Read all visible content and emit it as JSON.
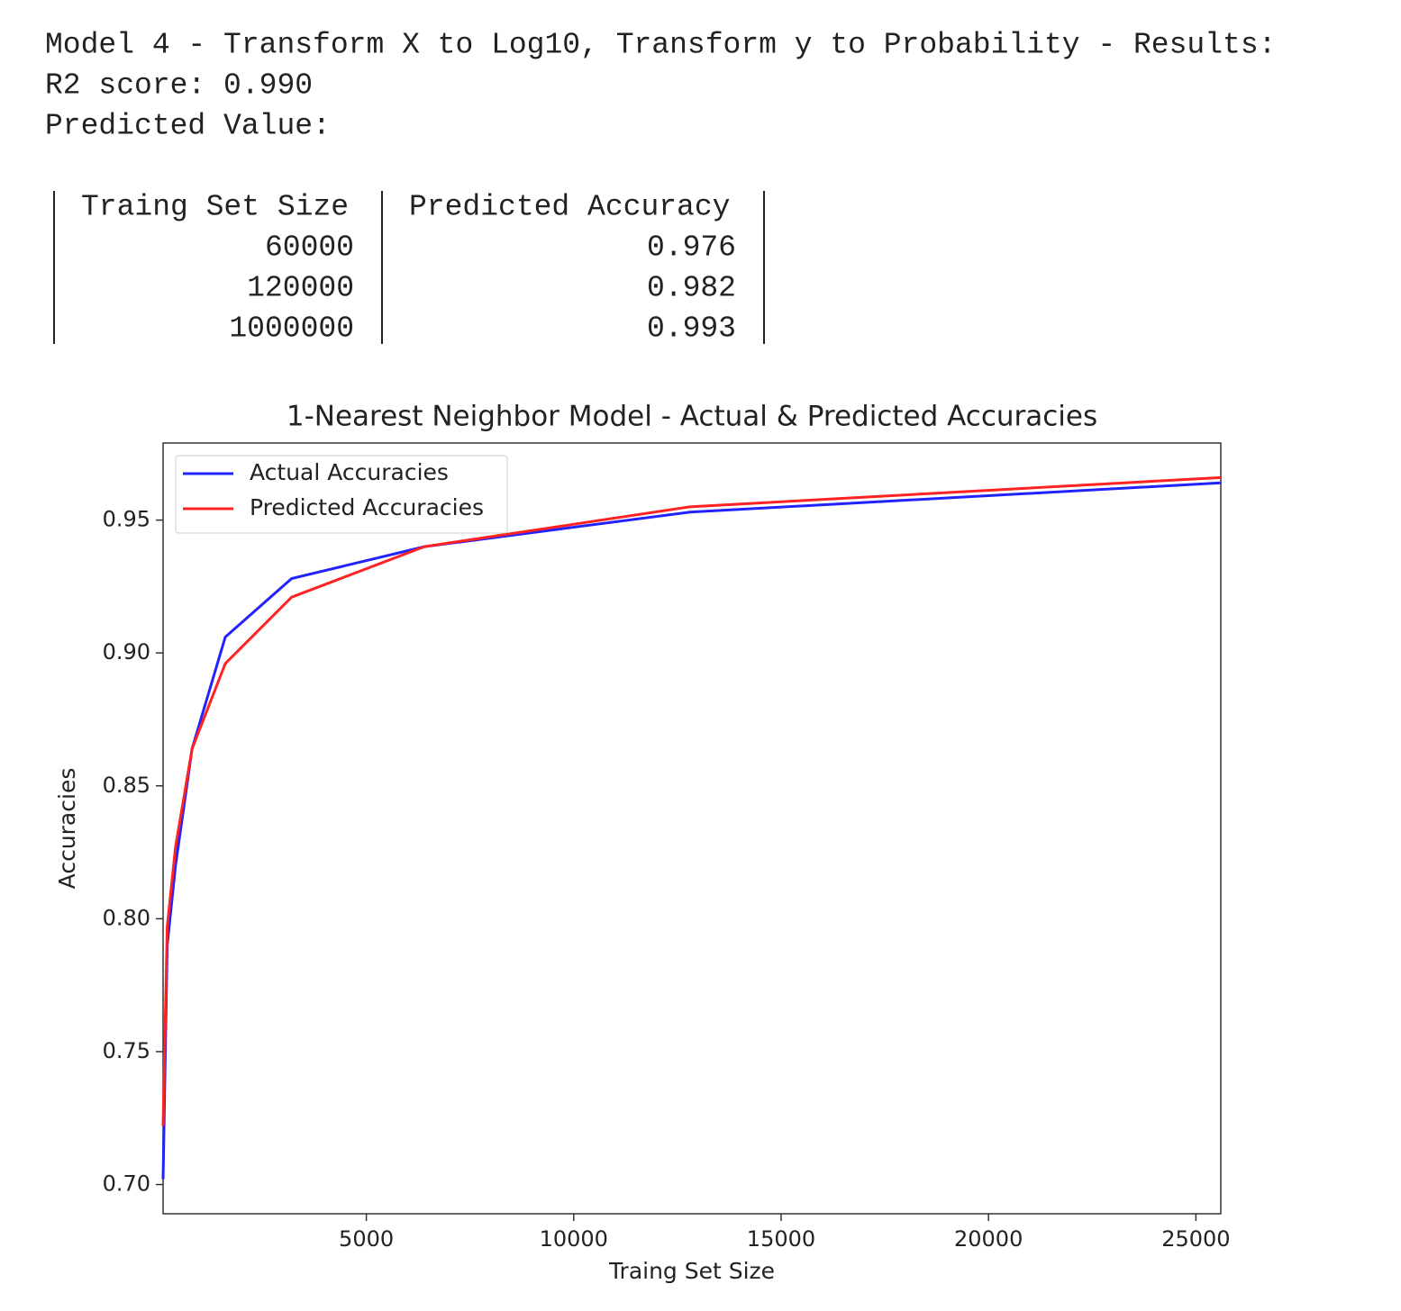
{
  "output": {
    "lines": [
      "Model 4 - Transform X to Log10, Transform y to Probability - Results:",
      "R2 score: 0.990",
      "Predicted Value:"
    ],
    "table": {
      "header": [
        "Traing Set Size",
        "Predicted Accuracy"
      ],
      "rows": [
        [
          "60000",
          "0.976"
        ],
        [
          "120000",
          "0.982"
        ],
        [
          "1000000",
          "0.993"
        ]
      ]
    }
  },
  "chart_data": {
    "type": "line",
    "title": "1-Nearest Neighbor Model - Actual & Predicted Accuracies",
    "x_label": "Traing Set Size",
    "y_label": "Accuracies",
    "x": [
      100,
      200,
      400,
      800,
      1600,
      3200,
      6400,
      12800,
      25600
    ],
    "series": [
      {
        "name": "Actual Accuracies",
        "color": "#2222ff",
        "values": [
          0.702,
          0.79,
          0.82,
          0.864,
          0.906,
          0.928,
          0.94,
          0.953,
          0.964
        ]
      },
      {
        "name": "Predicted Accuracies",
        "color": "#ff2222",
        "values": [
          0.722,
          0.797,
          0.827,
          0.864,
          0.896,
          0.921,
          0.94,
          0.955,
          0.966
        ]
      }
    ],
    "xlim": [
      100,
      25600
    ],
    "ylim": [
      0.689,
      0.979
    ],
    "xticks": [
      5000,
      10000,
      15000,
      20000,
      25000
    ],
    "yticks": [
      {
        "value": 0.7,
        "label": "0.70"
      },
      {
        "value": 0.75,
        "label": "0.75"
      },
      {
        "value": 0.8,
        "label": "0.80"
      },
      {
        "value": 0.85,
        "label": "0.85"
      },
      {
        "value": 0.9,
        "label": "0.90"
      },
      {
        "value": 0.95,
        "label": "0.95"
      }
    ],
    "legend": "upper left",
    "grid": false
  }
}
